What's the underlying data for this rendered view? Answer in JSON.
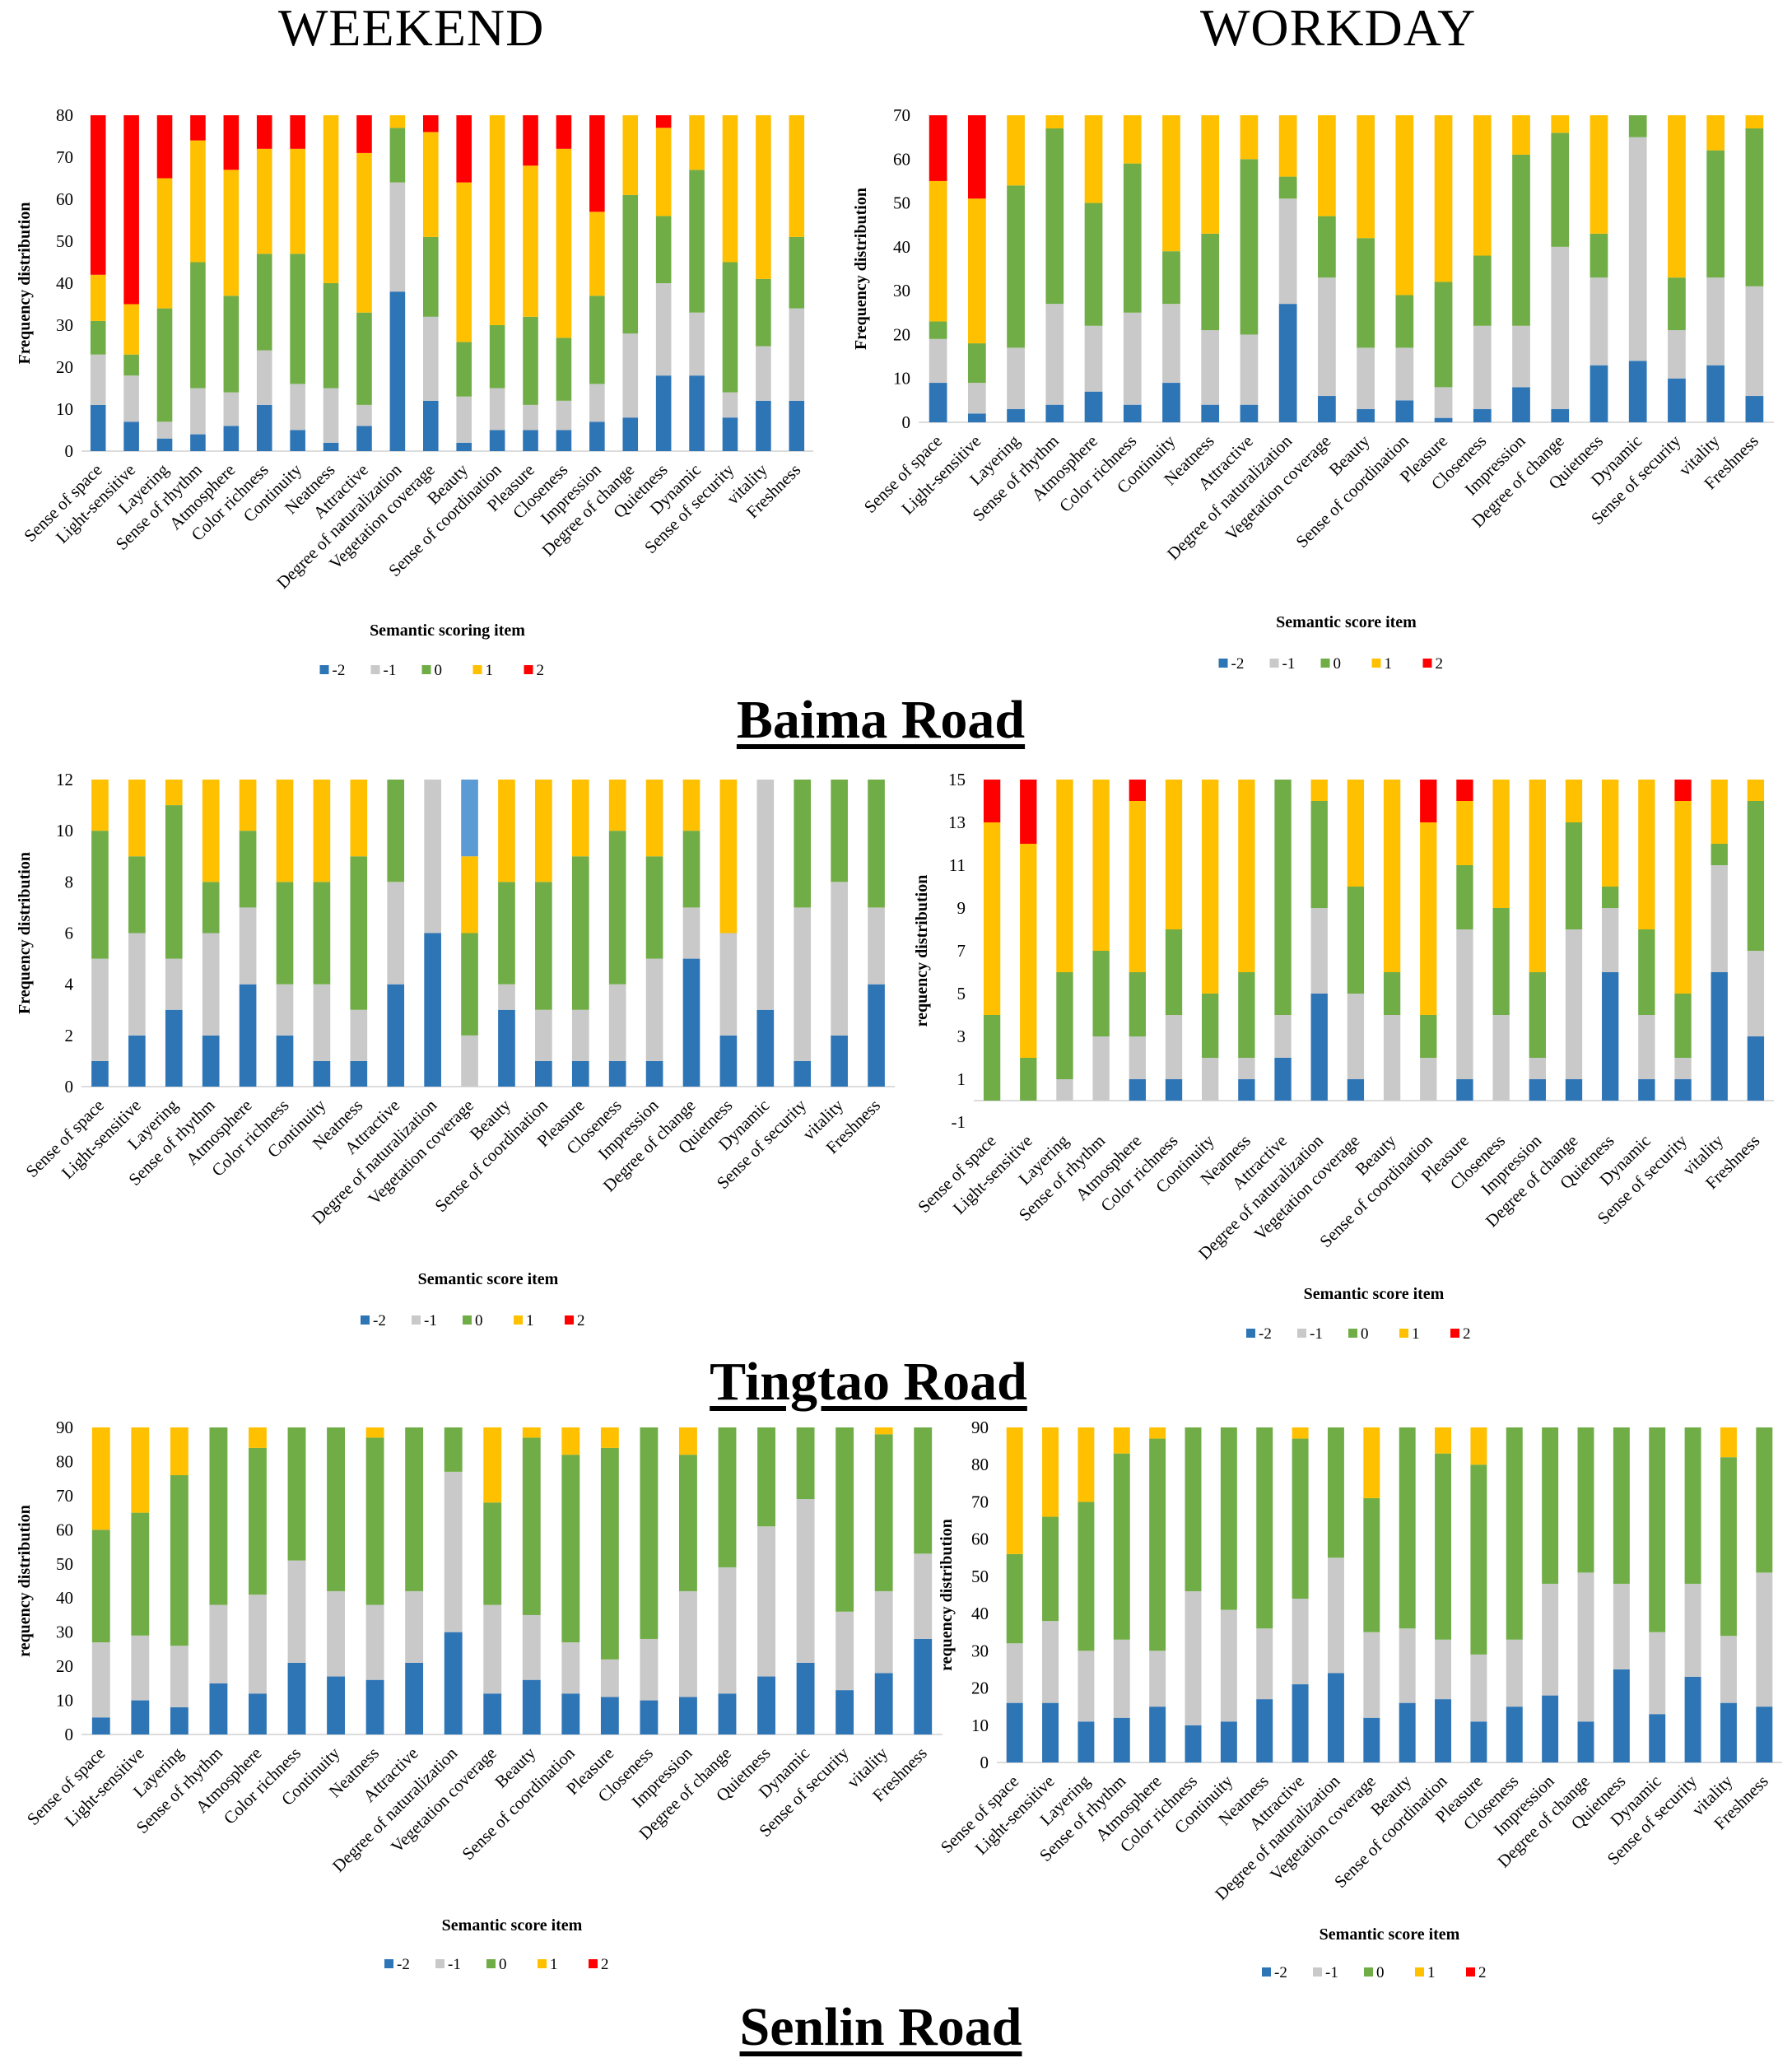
{
  "headers": {
    "weekend": "WEEKEND",
    "workday": "WORKDAY"
  },
  "roads": [
    "Baima Road",
    "Tingtao Road",
    "Senlin Road"
  ],
  "colors": {
    "-2": "#2E75B6",
    "-1": "#C9C9C9",
    "0": "#70AD47",
    "1": "#FFC000",
    "2": "#FF0000",
    "highlight": "#5B9BD5"
  },
  "chart_data": [
    {
      "type": "bar",
      "stacked": true,
      "road": "Baima Road",
      "period": "WEEKEND",
      "ylabel": "Frequency distribution",
      "xlabel": "Semantic scoring item",
      "ylim": [
        0,
        80
      ],
      "yticks": [
        0,
        10,
        20,
        30,
        40,
        50,
        60,
        70,
        80
      ],
      "series_names": [
        "-2",
        "-1",
        "0",
        "1",
        "2"
      ],
      "legend": "bottom",
      "categories": [
        "Sense of space",
        "Light-sensitive",
        "Layering",
        "Sense of rhythm",
        "Atmosphere",
        "Color richness",
        "Continuity",
        "Neatness",
        "Attractive",
        "Degree of naturalization",
        "Vegetation coverage",
        "Beauty",
        "Sense of coordination",
        "Pleasure",
        "Closeness",
        "Impression",
        "Degree of change",
        "Quietness",
        "Dynamic",
        "Sense of security",
        "vitality",
        "Freshness"
      ],
      "values": [
        [
          11,
          12,
          8,
          11,
          38
        ],
        [
          7,
          11,
          5,
          12,
          45
        ],
        [
          3,
          4,
          27,
          31,
          15
        ],
        [
          4,
          11,
          30,
          29,
          6
        ],
        [
          6,
          8,
          23,
          30,
          13
        ],
        [
          11,
          13,
          23,
          25,
          8
        ],
        [
          5,
          11,
          31,
          25,
          8
        ],
        [
          2,
          13,
          25,
          40,
          0
        ],
        [
          6,
          5,
          22,
          38,
          9
        ],
        [
          38,
          26,
          13,
          3,
          0
        ],
        [
          12,
          20,
          19,
          25,
          4
        ],
        [
          2,
          11,
          13,
          38,
          16
        ],
        [
          5,
          10,
          15,
          50,
          0
        ],
        [
          5,
          6,
          21,
          36,
          12
        ],
        [
          5,
          7,
          15,
          45,
          8
        ],
        [
          7,
          9,
          21,
          20,
          23
        ],
        [
          8,
          20,
          33,
          19,
          0
        ],
        [
          18,
          22,
          16,
          21,
          3
        ],
        [
          18,
          15,
          34,
          13,
          0
        ],
        [
          8,
          6,
          31,
          35,
          0
        ],
        [
          12,
          13,
          16,
          39,
          0
        ],
        [
          12,
          22,
          17,
          29,
          0
        ]
      ]
    },
    {
      "type": "bar",
      "stacked": true,
      "road": "Baima Road",
      "period": "WORKDAY",
      "ylabel": "Frequency distribution",
      "xlabel": "Semantic score item",
      "ylim": [
        0,
        70
      ],
      "yticks": [
        0,
        10,
        20,
        30,
        40,
        50,
        60,
        70
      ],
      "series_names": [
        "-2",
        "-1",
        "0",
        "1",
        "2"
      ],
      "legend": "bottom",
      "categories": [
        "Sense of space",
        "Light-sensitive",
        "Layering",
        "Sense of rhythm",
        "Atmosphere",
        "Color richness",
        "Continuity",
        "Neatness",
        "Attractive",
        "Degree of naturalization",
        "Vegetation coverage",
        "Beauty",
        "Sense of coordination",
        "Pleasure",
        "Closeness",
        "Impression",
        "Degree of change",
        "Quietness",
        "Dynamic",
        "Sense of security",
        "vitality",
        "Freshness"
      ],
      "values": [
        [
          9,
          10,
          4,
          32,
          15
        ],
        [
          2,
          7,
          9,
          33,
          19
        ],
        [
          3,
          14,
          37,
          16,
          0
        ],
        [
          4,
          23,
          40,
          3,
          0
        ],
        [
          7,
          15,
          28,
          20,
          0
        ],
        [
          4,
          21,
          34,
          11,
          0
        ],
        [
          9,
          18,
          12,
          31,
          0
        ],
        [
          4,
          17,
          22,
          27,
          0
        ],
        [
          4,
          16,
          40,
          10,
          0
        ],
        [
          27,
          24,
          5,
          14,
          0
        ],
        [
          6,
          27,
          14,
          23,
          0
        ],
        [
          3,
          14,
          25,
          28,
          0
        ],
        [
          5,
          12,
          12,
          41,
          0
        ],
        [
          1,
          7,
          24,
          38,
          0
        ],
        [
          3,
          19,
          16,
          32,
          0
        ],
        [
          8,
          14,
          39,
          9,
          0
        ],
        [
          3,
          37,
          26,
          4,
          0
        ],
        [
          13,
          20,
          10,
          27,
          0
        ],
        [
          14,
          51,
          5,
          0,
          0
        ],
        [
          10,
          11,
          12,
          37,
          0
        ],
        [
          13,
          20,
          29,
          8,
          0
        ],
        [
          6,
          25,
          36,
          3,
          0
        ]
      ]
    },
    {
      "type": "bar",
      "stacked": true,
      "road": "Tingtao Road",
      "period": "WEEKEND",
      "ylabel": "Frequency distribution",
      "xlabel": "Semantic score item",
      "ylim": [
        0,
        12
      ],
      "yticks": [
        0,
        2,
        4,
        6,
        8,
        10,
        12
      ],
      "series_names": [
        "-2",
        "-1",
        "0",
        "1",
        "2"
      ],
      "legend": "bottom",
      "highlight_segment": {
        "category": "Vegetation coverage",
        "series": "2"
      },
      "categories": [
        "Sense of space",
        "Light-sensitive",
        "Layering",
        "Sense of rhythm",
        "Atmosphere",
        "Color richness",
        "Continuity",
        "Neatness",
        "Attractive",
        "Degree of naturalization",
        "Vegetation coverage",
        "Beauty",
        "Sense of coordination",
        "Pleasure",
        "Closeness",
        "Impression",
        "Degree of change",
        "Quietness",
        "Dynamic",
        "Sense of security",
        "vitality",
        "Freshness"
      ],
      "values": [
        [
          1,
          4,
          5,
          2,
          0
        ],
        [
          2,
          4,
          3,
          3,
          0
        ],
        [
          3,
          2,
          6,
          1,
          0
        ],
        [
          2,
          4,
          2,
          4,
          0
        ],
        [
          4,
          3,
          3,
          2,
          0
        ],
        [
          2,
          2,
          4,
          4,
          0
        ],
        [
          1,
          3,
          4,
          4,
          0
        ],
        [
          1,
          2,
          6,
          3,
          0
        ],
        [
          4,
          4,
          4,
          0,
          0
        ],
        [
          6,
          6,
          0,
          0,
          0
        ],
        [
          0,
          2,
          4,
          3,
          3
        ],
        [
          3,
          1,
          4,
          4,
          0
        ],
        [
          1,
          2,
          5,
          4,
          0
        ],
        [
          1,
          2,
          6,
          3,
          0
        ],
        [
          1,
          3,
          6,
          2,
          0
        ],
        [
          1,
          4,
          4,
          3,
          0
        ],
        [
          5,
          2,
          3,
          2,
          0
        ],
        [
          2,
          4,
          0,
          6,
          0
        ],
        [
          3,
          9,
          0,
          0,
          0
        ],
        [
          1,
          6,
          5,
          0,
          0
        ],
        [
          2,
          6,
          4,
          0,
          0
        ],
        [
          4,
          3,
          5,
          0,
          0
        ]
      ]
    },
    {
      "type": "bar",
      "stacked": true,
      "road": "Tingtao Road",
      "period": "WORKDAY",
      "ylabel": "requency distribution",
      "xlabel": "Semantic score item",
      "ylim": [
        -1,
        15
      ],
      "yticks": [
        -1,
        1,
        3,
        5,
        7,
        9,
        11,
        13,
        15
      ],
      "series_names": [
        "-2",
        "-1",
        "0",
        "1",
        "2"
      ],
      "legend": "bottom",
      "categories": [
        "Sense of space",
        "Light-sensitive",
        "Layering",
        "Sense of rhythm",
        "Atmosphere",
        "Color richness",
        "Continuity",
        "Neatness",
        "Attractive",
        "Degree of naturalization",
        "Vegetation coverage",
        "Beauty",
        "Sense of coordination",
        "Pleasure",
        "Closeness",
        "Impression",
        "Degree of change",
        "Quietness",
        "Dynamic",
        "Sense of security",
        "vitality",
        "Freshness"
      ],
      "values": [
        [
          0,
          0,
          4,
          9,
          2
        ],
        [
          0,
          0,
          2,
          10,
          3
        ],
        [
          0,
          1,
          5,
          9,
          0
        ],
        [
          0,
          3,
          4,
          8,
          0
        ],
        [
          1,
          2,
          3,
          8,
          1
        ],
        [
          1,
          3,
          4,
          7,
          0
        ],
        [
          0,
          2,
          3,
          10,
          0
        ],
        [
          1,
          1,
          4,
          9,
          0
        ],
        [
          2,
          2,
          11,
          0,
          0
        ],
        [
          5,
          4,
          5,
          1,
          0
        ],
        [
          1,
          4,
          5,
          5,
          0
        ],
        [
          0,
          4,
          2,
          9,
          0
        ],
        [
          0,
          2,
          2,
          9,
          2
        ],
        [
          1,
          7,
          3,
          3,
          1
        ],
        [
          0,
          4,
          5,
          6,
          0
        ],
        [
          1,
          1,
          4,
          9,
          0
        ],
        [
          1,
          7,
          5,
          2,
          0
        ],
        [
          6,
          3,
          1,
          5,
          0
        ],
        [
          1,
          3,
          4,
          7,
          0
        ],
        [
          1,
          1,
          3,
          9,
          1
        ],
        [
          6,
          5,
          1,
          3,
          0
        ],
        [
          3,
          4,
          7,
          1,
          0
        ]
      ]
    },
    {
      "type": "bar",
      "stacked": true,
      "road": "Senlin Road",
      "period": "WEEKEND",
      "ylabel": "requency distribution",
      "xlabel": "Semantic score item",
      "ylim": [
        0,
        90
      ],
      "yticks": [
        0,
        10,
        20,
        30,
        40,
        50,
        60,
        70,
        80,
        90
      ],
      "series_names": [
        "-2",
        "-1",
        "0",
        "1",
        "2"
      ],
      "legend": "bottom",
      "categories": [
        "Sense of space",
        "Light-sensitive",
        "Layering",
        "Sense of rhythm",
        "Atmosphere",
        "Color richness",
        "Continuity",
        "Neatness",
        "Attractive",
        "Degree of naturalization",
        "Vegetation coverage",
        "Beauty",
        "Sense of coordination",
        "Pleasure",
        "Closeness",
        "Impression",
        "Degree of change",
        "Quietness",
        "Dynamic",
        "Sense of security",
        "vitality",
        "Freshness"
      ],
      "values": [
        [
          5,
          22,
          33,
          30,
          0
        ],
        [
          10,
          19,
          36,
          25,
          0
        ],
        [
          8,
          18,
          50,
          14,
          0
        ],
        [
          15,
          23,
          52,
          0,
          0
        ],
        [
          12,
          29,
          43,
          6,
          0
        ],
        [
          21,
          30,
          39,
          0,
          0
        ],
        [
          17,
          25,
          48,
          0,
          0
        ],
        [
          16,
          22,
          49,
          3,
          0
        ],
        [
          21,
          21,
          48,
          0,
          0
        ],
        [
          30,
          47,
          13,
          0,
          0
        ],
        [
          12,
          26,
          30,
          22,
          0
        ],
        [
          16,
          19,
          52,
          3,
          0
        ],
        [
          12,
          15,
          55,
          8,
          0
        ],
        [
          11,
          11,
          62,
          6,
          0
        ],
        [
          10,
          18,
          62,
          0,
          0
        ],
        [
          11,
          31,
          40,
          8,
          0
        ],
        [
          12,
          37,
          41,
          0,
          0
        ],
        [
          17,
          44,
          29,
          0,
          0
        ],
        [
          21,
          48,
          21,
          0,
          0
        ],
        [
          13,
          23,
          54,
          0,
          0
        ],
        [
          18,
          24,
          46,
          2,
          0
        ],
        [
          28,
          25,
          37,
          0,
          0
        ]
      ]
    },
    {
      "type": "bar",
      "stacked": true,
      "road": "Senlin Road",
      "period": "WORKDAY",
      "ylabel": "requency distribution",
      "xlabel": "Semantic score item",
      "ylim": [
        0,
        90
      ],
      "yticks": [
        0,
        10,
        20,
        30,
        40,
        50,
        60,
        70,
        80,
        90
      ],
      "series_names": [
        "-2",
        "-1",
        "0",
        "1",
        "2"
      ],
      "legend": "bottom",
      "categories": [
        "Sense of space",
        "Light-sensitive",
        "Layering",
        "Sense of rhythm",
        "Atmosphere",
        "Color richness",
        "Continuity",
        "Neatness",
        "Attractive",
        "Degree of naturalization",
        "Vegetation coverage",
        "Beauty",
        "Sense of coordination",
        "Pleasure",
        "Closeness",
        "Impression",
        "Degree of change",
        "Quietness",
        "Dynamic",
        "Sense of security",
        "vitality",
        "Freshness"
      ],
      "values": [
        [
          16,
          16,
          24,
          34,
          0
        ],
        [
          16,
          22,
          28,
          24,
          0
        ],
        [
          11,
          19,
          40,
          20,
          0
        ],
        [
          12,
          21,
          50,
          7,
          0
        ],
        [
          15,
          15,
          57,
          3,
          0
        ],
        [
          10,
          36,
          44,
          0,
          0
        ],
        [
          11,
          30,
          49,
          0,
          0
        ],
        [
          17,
          19,
          54,
          0,
          0
        ],
        [
          21,
          23,
          43,
          3,
          0
        ],
        [
          24,
          31,
          35,
          0,
          0
        ],
        [
          12,
          23,
          36,
          19,
          0
        ],
        [
          16,
          20,
          54,
          0,
          0
        ],
        [
          17,
          16,
          50,
          7,
          0
        ],
        [
          11,
          18,
          51,
          10,
          0
        ],
        [
          15,
          18,
          57,
          0,
          0
        ],
        [
          18,
          30,
          42,
          0,
          0
        ],
        [
          11,
          40,
          39,
          0,
          0
        ],
        [
          25,
          23,
          42,
          0,
          0
        ],
        [
          13,
          22,
          55,
          0,
          0
        ],
        [
          23,
          25,
          42,
          0,
          0
        ],
        [
          16,
          18,
          48,
          8,
          0
        ],
        [
          15,
          36,
          39,
          0,
          0
        ]
      ]
    }
  ]
}
